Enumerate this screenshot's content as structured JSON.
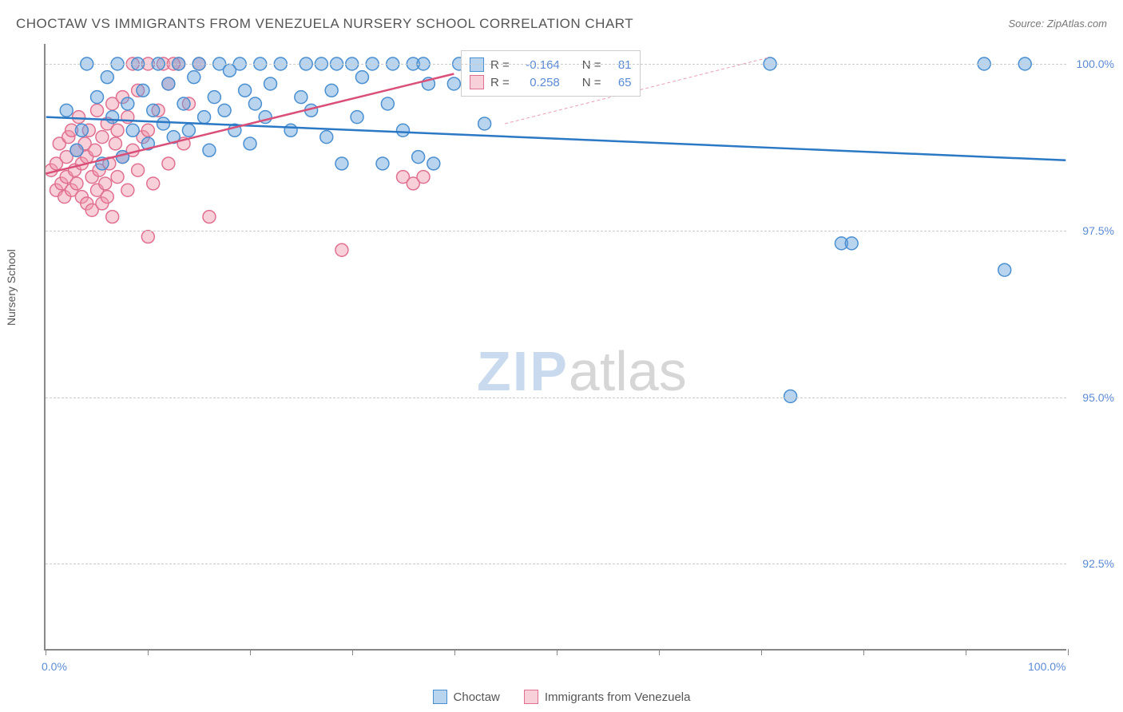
{
  "title": "CHOCTAW VS IMMIGRANTS FROM VENEZUELA NURSERY SCHOOL CORRELATION CHART",
  "source": "Source: ZipAtlas.com",
  "watermark": {
    "part1": "ZIP",
    "part2": "atlas"
  },
  "chart": {
    "type": "scatter",
    "ylabel": "Nursery School",
    "xlim": [
      0,
      100
    ],
    "ylim": [
      91.2,
      100.3
    ],
    "x_ticks": [
      0,
      10,
      20,
      30,
      40,
      50,
      60,
      70,
      80,
      90,
      100
    ],
    "x_tick_labels": {
      "0": "0.0%",
      "100": "100.0%"
    },
    "y_ticks": [
      92.5,
      95.0,
      97.5,
      100.0
    ],
    "y_tick_labels": [
      "92.5%",
      "95.0%",
      "97.5%",
      "100.0%"
    ],
    "background_color": "#ffffff",
    "grid_color": "#cccccc",
    "axis_color": "#888888",
    "series": [
      {
        "name": "Choctaw",
        "color_fill": "rgba(100,160,220,0.45)",
        "color_stroke": "#4a8fd0",
        "R": "-0.164",
        "N": "81",
        "trend": {
          "x1": 0,
          "y1": 99.2,
          "x2": 100,
          "y2": 98.55,
          "color": "#2b78c4",
          "width": 2.5,
          "dash": "none"
        },
        "trend_extra": {
          "x1": 45,
          "y1": 99.1,
          "x2": 71,
          "y2": 100.1,
          "color": "#e9a0b0",
          "width": 1,
          "dash": "4,3"
        },
        "points": [
          [
            2,
            99.3
          ],
          [
            3,
            98.7
          ],
          [
            3.5,
            99.0
          ],
          [
            4,
            100.0
          ],
          [
            5,
            99.5
          ],
          [
            5.5,
            98.5
          ],
          [
            6,
            99.8
          ],
          [
            6.5,
            99.2
          ],
          [
            7,
            100.0
          ],
          [
            7.5,
            98.6
          ],
          [
            8,
            99.4
          ],
          [
            8.5,
            99.0
          ],
          [
            9,
            100.0
          ],
          [
            9.5,
            99.6
          ],
          [
            10,
            98.8
          ],
          [
            10.5,
            99.3
          ],
          [
            11,
            100.0
          ],
          [
            11.5,
            99.1
          ],
          [
            12,
            99.7
          ],
          [
            12.5,
            98.9
          ],
          [
            13,
            100.0
          ],
          [
            13.5,
            99.4
          ],
          [
            14,
            99.0
          ],
          [
            14.5,
            99.8
          ],
          [
            15,
            100.0
          ],
          [
            15.5,
            99.2
          ],
          [
            16,
            98.7
          ],
          [
            16.5,
            99.5
          ],
          [
            17,
            100.0
          ],
          [
            17.5,
            99.3
          ],
          [
            18,
            99.9
          ],
          [
            18.5,
            99.0
          ],
          [
            19,
            100.0
          ],
          [
            19.5,
            99.6
          ],
          [
            20,
            98.8
          ],
          [
            20.5,
            99.4
          ],
          [
            21,
            100.0
          ],
          [
            21.5,
            99.2
          ],
          [
            22,
            99.7
          ],
          [
            23,
            100.0
          ],
          [
            24,
            99.0
          ],
          [
            25,
            99.5
          ],
          [
            25.5,
            100.0
          ],
          [
            26,
            99.3
          ],
          [
            27,
            100.0
          ],
          [
            27.5,
            98.9
          ],
          [
            28,
            99.6
          ],
          [
            28.5,
            100.0
          ],
          [
            29,
            98.5
          ],
          [
            30,
            100.0
          ],
          [
            30.5,
            99.2
          ],
          [
            31,
            99.8
          ],
          [
            32,
            100.0
          ],
          [
            33,
            98.5
          ],
          [
            33.5,
            99.4
          ],
          [
            34,
            100.0
          ],
          [
            35,
            99.0
          ],
          [
            36,
            100.0
          ],
          [
            36.5,
            98.6
          ],
          [
            37,
            100.0
          ],
          [
            37.5,
            99.7
          ],
          [
            38,
            98.5
          ],
          [
            40,
            99.7
          ],
          [
            40.5,
            100.0
          ],
          [
            42,
            100.0
          ],
          [
            43,
            99.1
          ],
          [
            45,
            99.8
          ],
          [
            45.5,
            100.0
          ],
          [
            47,
            100.0
          ],
          [
            48,
            99.9
          ],
          [
            49,
            100.0
          ],
          [
            50,
            100.0
          ],
          [
            52,
            100.0
          ],
          [
            54,
            100.0
          ],
          [
            71,
            100.0
          ],
          [
            78,
            97.3
          ],
          [
            79,
            97.3
          ],
          [
            73,
            95.0
          ],
          [
            92,
            100.0
          ],
          [
            94,
            96.9
          ],
          [
            96,
            100.0
          ]
        ]
      },
      {
        "name": "Immigrants from Venezuela",
        "color_fill": "rgba(240,150,170,0.45)",
        "color_stroke": "#e07090",
        "R": "0.258",
        "N": "65",
        "trend": {
          "x1": 0,
          "y1": 98.35,
          "x2": 40,
          "y2": 99.85,
          "color": "#d94f78",
          "width": 2.5,
          "dash": "none"
        },
        "points": [
          [
            0.5,
            98.4
          ],
          [
            1,
            98.1
          ],
          [
            1,
            98.5
          ],
          [
            1.3,
            98.8
          ],
          [
            1.5,
            98.2
          ],
          [
            1.8,
            98.0
          ],
          [
            2,
            98.6
          ],
          [
            2,
            98.3
          ],
          [
            2.2,
            98.9
          ],
          [
            2.5,
            98.1
          ],
          [
            2.5,
            99.0
          ],
          [
            2.8,
            98.4
          ],
          [
            3,
            98.7
          ],
          [
            3,
            98.2
          ],
          [
            3.2,
            99.2
          ],
          [
            3.5,
            98.5
          ],
          [
            3.5,
            98.0
          ],
          [
            3.8,
            98.8
          ],
          [
            4,
            97.9
          ],
          [
            4,
            98.6
          ],
          [
            4.2,
            99.0
          ],
          [
            4.5,
            98.3
          ],
          [
            4.5,
            97.8
          ],
          [
            4.8,
            98.7
          ],
          [
            5,
            98.1
          ],
          [
            5,
            99.3
          ],
          [
            5.2,
            98.4
          ],
          [
            5.5,
            97.9
          ],
          [
            5.5,
            98.9
          ],
          [
            5.8,
            98.2
          ],
          [
            6,
            99.1
          ],
          [
            6,
            98.0
          ],
          [
            6.2,
            98.5
          ],
          [
            6.5,
            99.4
          ],
          [
            6.5,
            97.7
          ],
          [
            6.8,
            98.8
          ],
          [
            7,
            98.3
          ],
          [
            7,
            99.0
          ],
          [
            7.5,
            98.6
          ],
          [
            7.5,
            99.5
          ],
          [
            8,
            98.1
          ],
          [
            8,
            99.2
          ],
          [
            8.5,
            98.7
          ],
          [
            8.5,
            100.0
          ],
          [
            9,
            98.4
          ],
          [
            9,
            99.6
          ],
          [
            9.5,
            98.9
          ],
          [
            10,
            99.0
          ],
          [
            10,
            100.0
          ],
          [
            10.5,
            98.2
          ],
          [
            11,
            99.3
          ],
          [
            11.5,
            100.0
          ],
          [
            12,
            98.5
          ],
          [
            12,
            99.7
          ],
          [
            13,
            100.0
          ],
          [
            13.5,
            98.8
          ],
          [
            14,
            99.4
          ],
          [
            15,
            100.0
          ],
          [
            10,
            97.4
          ],
          [
            16,
            97.7
          ],
          [
            29,
            97.2
          ],
          [
            35,
            98.3
          ],
          [
            36,
            98.2
          ],
          [
            37,
            98.3
          ],
          [
            12.5,
            100.0
          ]
        ]
      }
    ],
    "stats_box": {
      "R_label": "R =",
      "N_label": "N =",
      "value_color": "#5b8bd4",
      "label_color": "#555555"
    },
    "marker_radius": 8,
    "marker_stroke_width": 1.5
  },
  "bottom_legend": [
    {
      "label": "Choctaw",
      "fill": "rgba(100,160,220,0.45)",
      "stroke": "#4a8fd0"
    },
    {
      "label": "Immigrants from Venezuela",
      "fill": "rgba(240,150,170,0.45)",
      "stroke": "#e07090"
    }
  ]
}
